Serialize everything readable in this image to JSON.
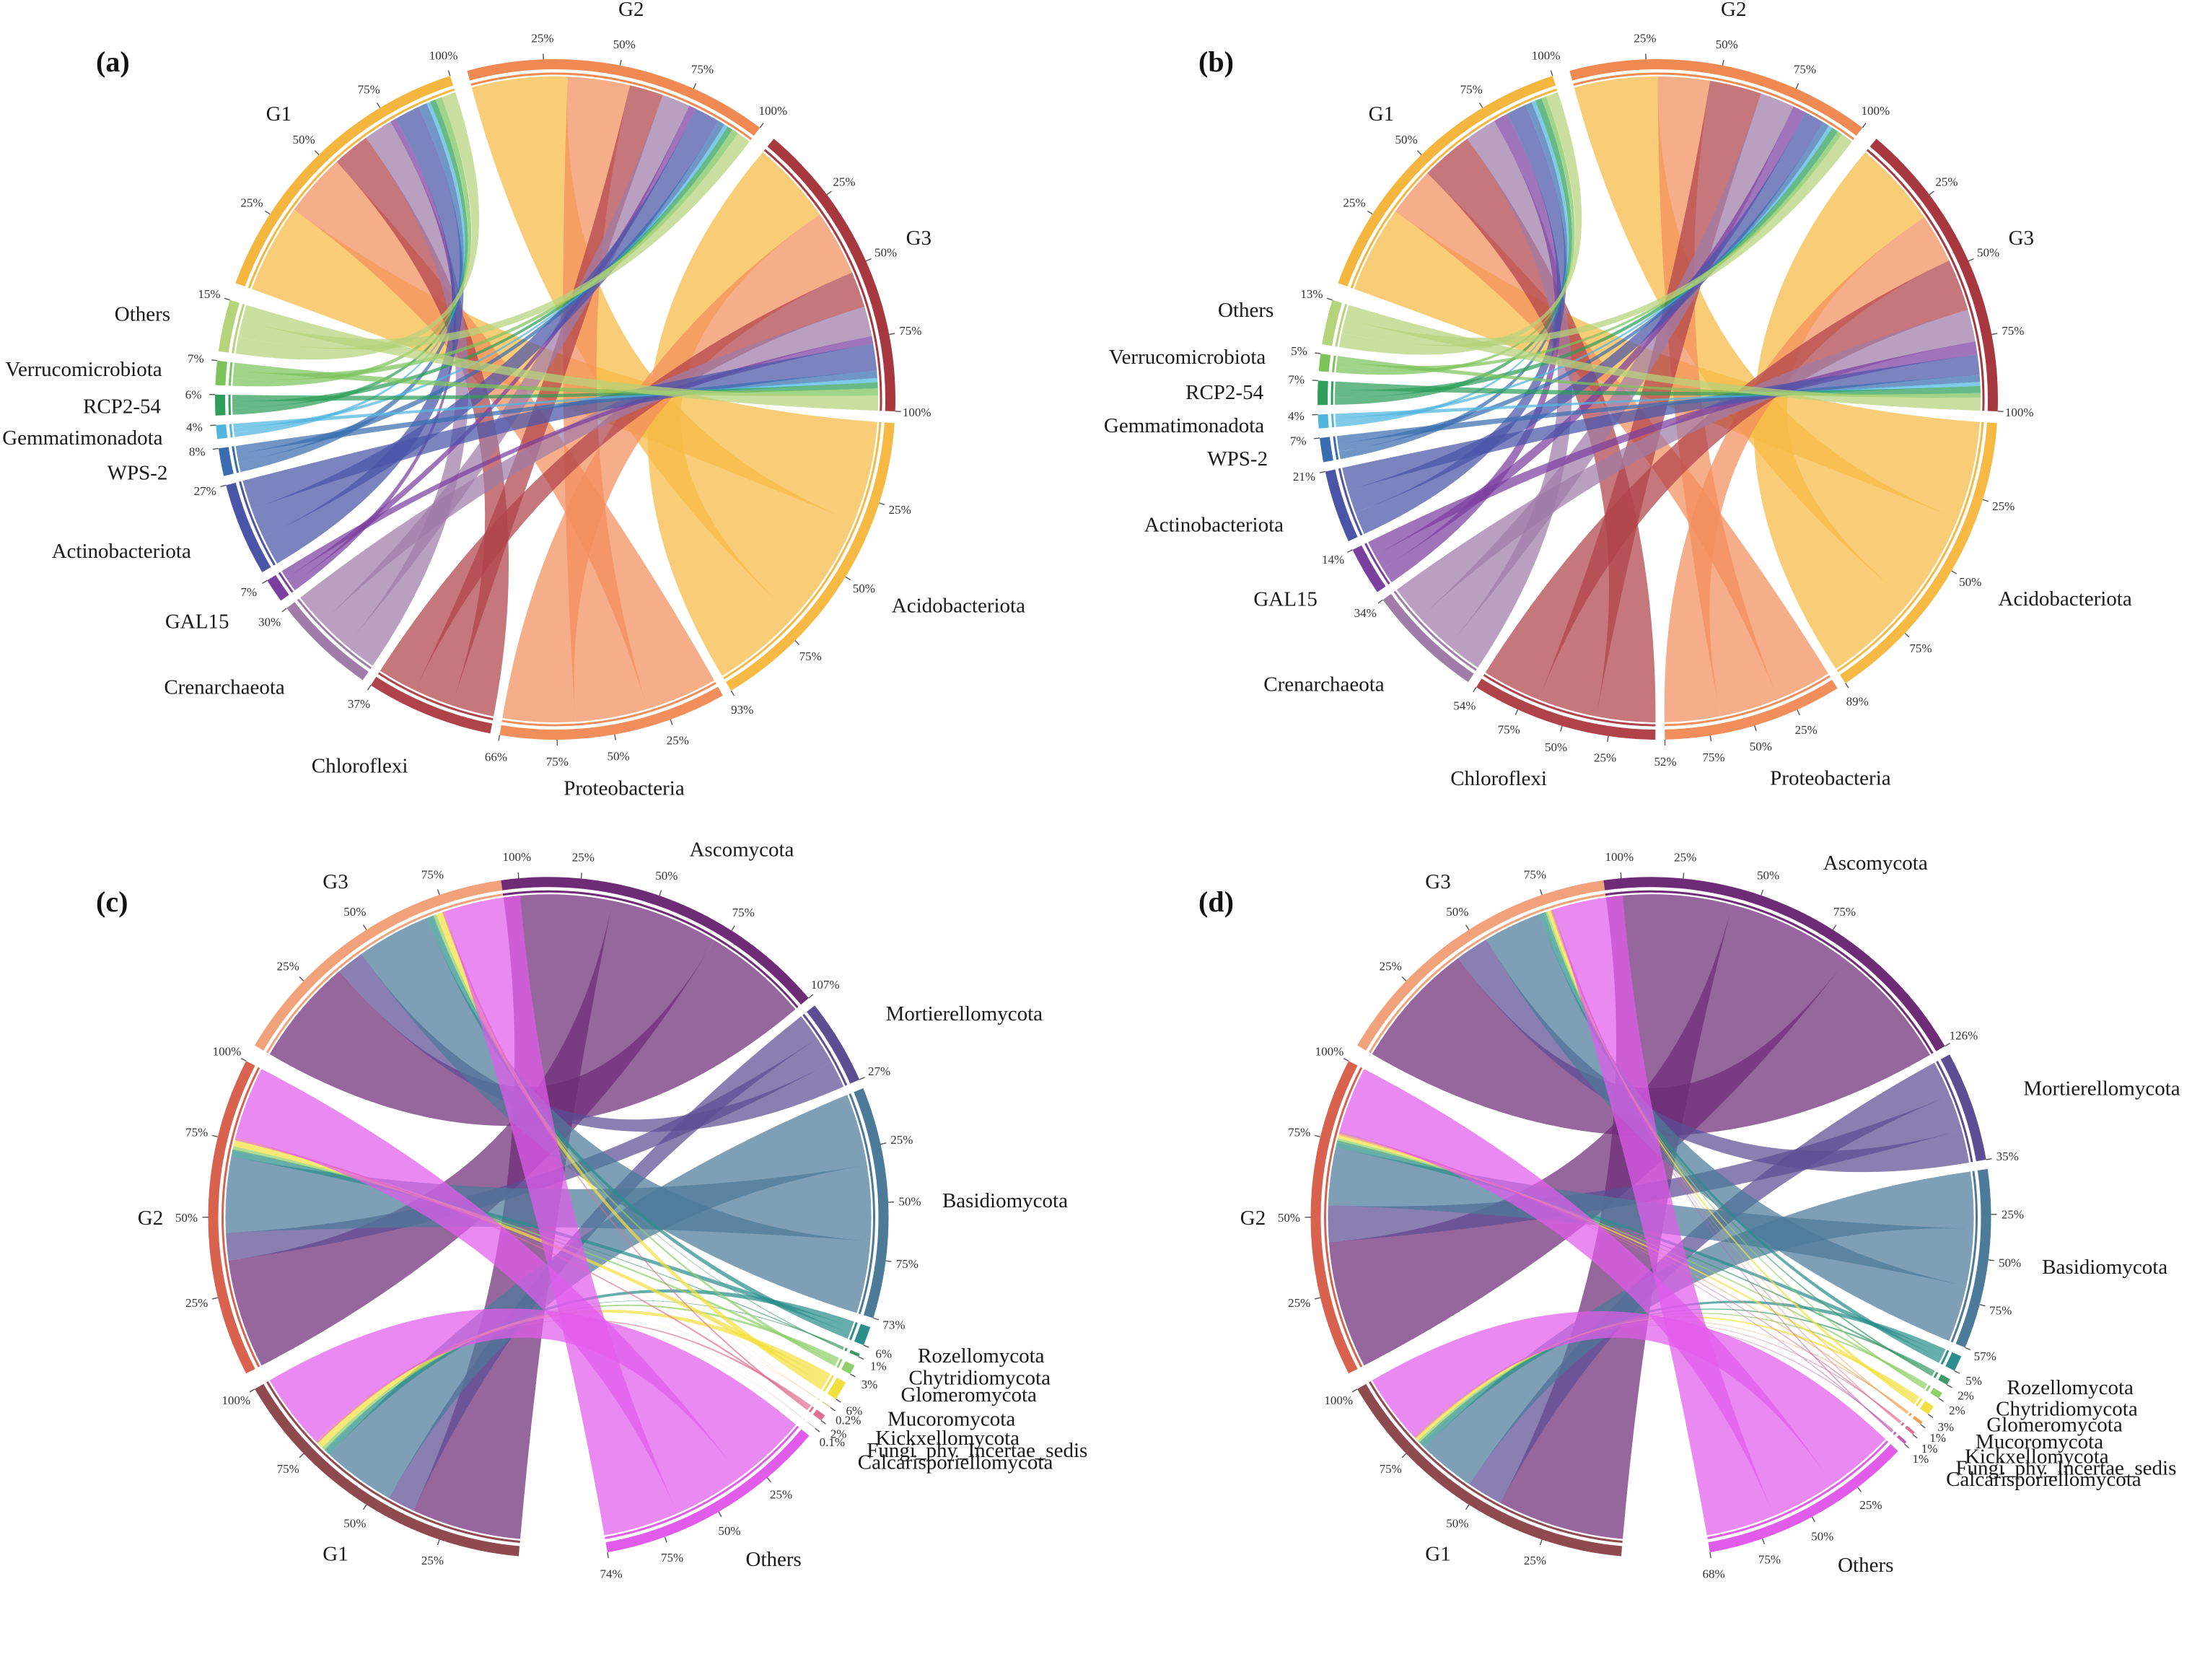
{
  "figure": {
    "description_source": "Four chord diagrams showing community composition across groups G1, G2, G3",
    "tick_values": [
      "25%",
      "50%",
      "75%",
      "100%"
    ]
  },
  "chart_data": [
    {
      "type": "chord",
      "panel": "(a)",
      "groups": [
        {
          "name": "G1",
          "color": "#F4B63F",
          "total_label": "100%"
        },
        {
          "name": "G2",
          "color": "#F08A52",
          "total_label": "100%"
        },
        {
          "name": "G3",
          "color": "#A8383F",
          "total_label": "100%"
        }
      ],
      "taxa": [
        {
          "name": "Acidobacteriota",
          "color": "#F6BA44",
          "total_label": "93%",
          "values": [
            0.31,
            0.34,
            0.28
          ]
        },
        {
          "name": "Proteobacteria",
          "color": "#F28E5B",
          "total_label": "66%",
          "values": [
            0.22,
            0.22,
            0.22
          ]
        },
        {
          "name": "Chloroflexi",
          "color": "#B0424A",
          "total_label": "37%",
          "values": [
            0.13,
            0.12,
            0.12
          ]
        },
        {
          "name": "Crenarchaeota",
          "color": "#A07CA8",
          "total_label": "30%",
          "values": [
            0.1,
            0.1,
            0.1
          ]
        },
        {
          "name": "GAL15",
          "color": "#7B3FA0",
          "total_label": "7%",
          "values": [
            0.02,
            0.025,
            0.025
          ]
        },
        {
          "name": "Actinobacteriota",
          "color": "#4A55A8",
          "total_label": "27%",
          "values": [
            0.09,
            0.09,
            0.09
          ]
        },
        {
          "name": "WPS-2",
          "color": "#3A6DB0",
          "total_label": "8%",
          "values": [
            0.03,
            0.025,
            0.025
          ]
        },
        {
          "name": "Gemmatimonadota",
          "color": "#4FB6E0",
          "total_label": "4%",
          "values": [
            0.013,
            0.013,
            0.014
          ]
        },
        {
          "name": "RCP2-54",
          "color": "#2E9E5A",
          "total_label": "6%",
          "values": [
            0.02,
            0.02,
            0.02
          ]
        },
        {
          "name": "Verrucomicrobiota",
          "color": "#7CC35A",
          "total_label": "7%",
          "values": [
            0.023,
            0.023,
            0.024
          ]
        },
        {
          "name": "Others",
          "color": "#B5D37A",
          "total_label": "15%",
          "values": [
            0.05,
            0.05,
            0.05
          ]
        }
      ]
    },
    {
      "type": "chord",
      "panel": "(b)",
      "groups": [
        {
          "name": "G1",
          "color": "#F4B63F",
          "total_label": "100%"
        },
        {
          "name": "G2",
          "color": "#F08A52",
          "total_label": "100%"
        },
        {
          "name": "G3",
          "color": "#A8383F",
          "total_label": "100%"
        }
      ],
      "taxa": [
        {
          "name": "Acidobacteriota",
          "color": "#F6BA44",
          "total_label": "89%",
          "values": [
            0.3,
            0.29,
            0.3
          ]
        },
        {
          "name": "Proteobacteria",
          "color": "#F28E5B",
          "total_label": "52%",
          "values": [
            0.17,
            0.18,
            0.17
          ]
        },
        {
          "name": "Chloroflexi",
          "color": "#B0424A",
          "total_label": "54%",
          "values": [
            0.18,
            0.18,
            0.18
          ]
        },
        {
          "name": "Crenarchaeota",
          "color": "#A07CA8",
          "total_label": "34%",
          "values": [
            0.11,
            0.12,
            0.11
          ]
        },
        {
          "name": "GAL15",
          "color": "#7B3FA0",
          "total_label": "14%",
          "values": [
            0.05,
            0.045,
            0.045
          ]
        },
        {
          "name": "Actinobacteriota",
          "color": "#4A55A8",
          "total_label": "21%",
          "values": [
            0.07,
            0.07,
            0.07
          ]
        },
        {
          "name": "WPS-2",
          "color": "#3A6DB0",
          "total_label": "7%",
          "values": [
            0.023,
            0.023,
            0.024
          ]
        },
        {
          "name": "Gemmatimonadota",
          "color": "#4FB6E0",
          "total_label": "4%",
          "values": [
            0.013,
            0.013,
            0.014
          ]
        },
        {
          "name": "RCP2-54",
          "color": "#2E9E5A",
          "total_label": "7%",
          "values": [
            0.023,
            0.023,
            0.024
          ]
        },
        {
          "name": "Verrucomicrobiota",
          "color": "#7CC35A",
          "total_label": "5%",
          "values": [
            0.017,
            0.017,
            0.016
          ]
        },
        {
          "name": "Others",
          "color": "#B5D37A",
          "total_label": "13%",
          "values": [
            0.043,
            0.043,
            0.044
          ]
        }
      ]
    },
    {
      "type": "chord",
      "panel": "(c)",
      "groups": [
        {
          "name": "G1",
          "color": "#8E4A4F",
          "total_label": "100%"
        },
        {
          "name": "G2",
          "color": "#D9624E",
          "total_label": "100%"
        },
        {
          "name": "G3",
          "color": "#F2A27A",
          "total_label": "100%"
        }
      ],
      "taxa": [
        {
          "name": "Ascomycota",
          "color": "#6E2C77",
          "total_label": "107%",
          "values": [
            0.36,
            0.36,
            0.35
          ]
        },
        {
          "name": "Mortierellomycota",
          "color": "#5C4E93",
          "total_label": "27%",
          "values": [
            0.09,
            0.09,
            0.09
          ]
        },
        {
          "name": "Basidiomycota",
          "color": "#4C7A99",
          "total_label": "73%",
          "values": [
            0.24,
            0.25,
            0.24
          ]
        },
        {
          "name": "Rozellomycota",
          "color": "#2A8F8C",
          "total_label": "6%",
          "values": [
            0.02,
            0.02,
            0.02
          ]
        },
        {
          "name": "Chytridiomycota",
          "color": "#3A9A6A",
          "total_label": "1%",
          "values": [
            0.003,
            0.004,
            0.003
          ]
        },
        {
          "name": "Glomeromycota",
          "color": "#8FD06A",
          "total_label": "3%",
          "values": [
            0.01,
            0.01,
            0.01
          ]
        },
        {
          "name": "Mucoromycota",
          "color": "#F2E040",
          "total_label": "6%",
          "values": [
            0.02,
            0.02,
            0.02
          ]
        },
        {
          "name": "Kickxellomycota",
          "color": "#F2A050",
          "total_label": "0.2%",
          "values": [
            0.0007,
            0.0007,
            0.0006
          ]
        },
        {
          "name": "Fungi_phy_Incertae_sedis",
          "color": "#E07090",
          "total_label": "2%",
          "values": [
            0.007,
            0.007,
            0.006
          ]
        },
        {
          "name": "Calcarisporiellomycota",
          "color": "#C060B0",
          "total_label": "0.1%",
          "values": [
            0.0004,
            0.0003,
            0.0003
          ]
        },
        {
          "name": "Others",
          "color": "#E25CEB",
          "total_label": "74%",
          "values": [
            0.25,
            0.24,
            0.25
          ]
        }
      ]
    },
    {
      "type": "chord",
      "panel": "(d)",
      "groups": [
        {
          "name": "G1",
          "color": "#8E4A4F",
          "total_label": "100%"
        },
        {
          "name": "G2",
          "color": "#D9624E",
          "total_label": "100%"
        },
        {
          "name": "G3",
          "color": "#F2A27A",
          "total_label": "100%"
        }
      ],
      "taxa": [
        {
          "name": "Ascomycota",
          "color": "#6E2C77",
          "total_label": "126%",
          "values": [
            0.42,
            0.42,
            0.42
          ]
        },
        {
          "name": "Mortierellomycota",
          "color": "#5C4E93",
          "total_label": "35%",
          "values": [
            0.12,
            0.12,
            0.11
          ]
        },
        {
          "name": "Basidiomycota",
          "color": "#4C7A99",
          "total_label": "57%",
          "values": [
            0.19,
            0.19,
            0.19
          ]
        },
        {
          "name": "Rozellomycota",
          "color": "#2A8F8C",
          "total_label": "5%",
          "values": [
            0.017,
            0.017,
            0.016
          ]
        },
        {
          "name": "Chytridiomycota",
          "color": "#3A9A6A",
          "total_label": "2%",
          "values": [
            0.007,
            0.007,
            0.006
          ]
        },
        {
          "name": "Glomeromycota",
          "color": "#8FD06A",
          "total_label": "2%",
          "values": [
            0.007,
            0.007,
            0.006
          ]
        },
        {
          "name": "Mucoromycota",
          "color": "#F2E040",
          "total_label": "3%",
          "values": [
            0.01,
            0.01,
            0.01
          ]
        },
        {
          "name": "Kickxellomycota",
          "color": "#F2A050",
          "total_label": "1%",
          "values": [
            0.003,
            0.004,
            0.003
          ]
        },
        {
          "name": "Fungi_phy_Incertae_sedis",
          "color": "#E07090",
          "total_label": "1%",
          "values": [
            0.003,
            0.004,
            0.003
          ]
        },
        {
          "name": "Calcarisporiellomycota",
          "color": "#C060B0",
          "total_label": "1%",
          "values": [
            0.003,
            0.003,
            0.004
          ]
        },
        {
          "name": "Others",
          "color": "#E25CEB",
          "total_label": "68%",
          "values": [
            0.23,
            0.22,
            0.23
          ]
        }
      ]
    }
  ]
}
